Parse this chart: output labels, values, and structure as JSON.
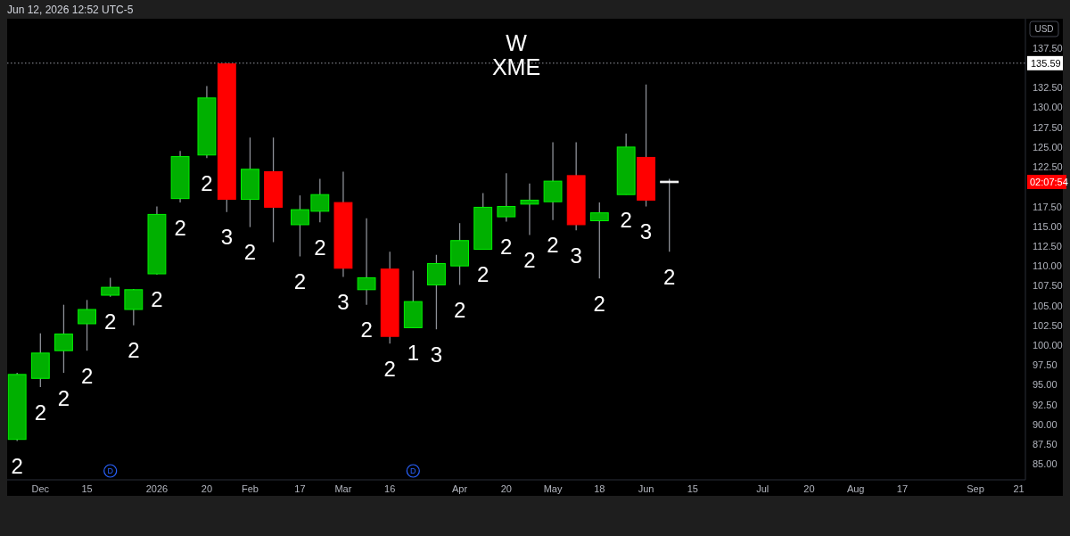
{
  "chart_data": {
    "type": "candlestick",
    "title": "W",
    "subtitle": "XME",
    "ylabel": "USD",
    "x": [
      "2025-11-24",
      "2025-12-01",
      "2025-12-08",
      "2025-12-15",
      "2025-12-22",
      "2025-12-29",
      "2026-01-05",
      "2026-01-12",
      "2026-01-20",
      "2026-01-26",
      "2026-02-02",
      "2026-02-09",
      "2026-02-17",
      "2026-02-23",
      "2026-03-02",
      "2026-03-09",
      "2026-03-16",
      "2026-03-23",
      "2026-03-30",
      "2026-04-06",
      "2026-04-13",
      "2026-04-20",
      "2026-04-27",
      "2026-05-04",
      "2026-05-11",
      "2026-05-18",
      "2026-05-26",
      "2026-06-01",
      "2026-06-08"
    ],
    "ohlc": [
      [
        88.1,
        96.5,
        87.9,
        96.3
      ],
      [
        95.8,
        101.5,
        94.7,
        99.0
      ],
      [
        99.3,
        105.1,
        96.5,
        101.4
      ],
      [
        102.7,
        105.7,
        99.3,
        104.5
      ],
      [
        106.3,
        108.5,
        106.1,
        107.3
      ],
      [
        104.5,
        107.1,
        102.5,
        107.0
      ],
      [
        109.0,
        117.5,
        108.9,
        116.5
      ],
      [
        118.5,
        124.5,
        118.0,
        123.8
      ],
      [
        124.0,
        132.7,
        123.6,
        131.2
      ],
      [
        135.5,
        135.59,
        116.8,
        118.4
      ],
      [
        118.4,
        126.2,
        114.9,
        122.2
      ],
      [
        121.9,
        126.2,
        113.0,
        117.4
      ],
      [
        115.2,
        118.9,
        111.2,
        117.1
      ],
      [
        116.9,
        121.0,
        115.5,
        119.0
      ],
      [
        118.0,
        121.9,
        108.6,
        109.7
      ],
      [
        107.0,
        116.0,
        105.1,
        108.5
      ],
      [
        109.6,
        111.8,
        100.2,
        101.1
      ],
      [
        102.2,
        109.4,
        102.2,
        105.5
      ],
      [
        107.6,
        111.4,
        102.0,
        110.3
      ],
      [
        110.0,
        115.4,
        107.6,
        113.2
      ],
      [
        112.1,
        119.2,
        112.1,
        117.4
      ],
      [
        116.2,
        121.7,
        115.6,
        117.5
      ],
      [
        117.8,
        120.4,
        113.9,
        118.3
      ],
      [
        118.1,
        125.6,
        115.8,
        120.7
      ],
      [
        121.4,
        125.6,
        114.5,
        115.2
      ],
      [
        115.7,
        118.0,
        108.4,
        116.7
      ],
      [
        119.0,
        126.7,
        119.0,
        125.0
      ],
      [
        123.7,
        132.9,
        117.5,
        118.3
      ],
      [
        120.6,
        121.0,
        111.8,
        120.6
      ]
    ],
    "colors": [
      "#00b000",
      "#00b000",
      "#00b000",
      "#00b000",
      "#00b000",
      "#00b000",
      "#00b000",
      "#00b000",
      "#00b000",
      "#ff0000",
      "#00b000",
      "#ff0000",
      "#00b000",
      "#00b000",
      "#ff0000",
      "#00b000",
      "#ff0000",
      "#00b000",
      "#00b000",
      "#00b000",
      "#00b000",
      "#00b000",
      "#00b000",
      "#00b000",
      "#ff0000",
      "#00b000",
      "#00b000",
      "#ff0000",
      "#ffffff"
    ],
    "xlim": [
      "2025-11-21",
      "2026-09-23"
    ],
    "xticks": [
      {
        "value": "2025-12-01",
        "label": "Dec"
      },
      {
        "value": "2025-12-15",
        "label": "15"
      },
      {
        "value": "2026-01-05",
        "label": "2026"
      },
      {
        "value": "2026-01-20",
        "label": "20"
      },
      {
        "value": "2026-02-02",
        "label": "Feb"
      },
      {
        "value": "2026-02-17",
        "label": "17"
      },
      {
        "value": "2026-03-02",
        "label": "Mar"
      },
      {
        "value": "2026-03-16",
        "label": "16"
      },
      {
        "value": "2026-04-06",
        "label": "Apr"
      },
      {
        "value": "2026-04-20",
        "label": "20"
      },
      {
        "value": "2026-05-04",
        "label": "May"
      },
      {
        "value": "2026-05-18",
        "label": "18"
      },
      {
        "value": "2026-06-01",
        "label": "Jun"
      },
      {
        "value": "2026-06-15",
        "label": "15"
      },
      {
        "value": "2026-07-06",
        "label": "Jul"
      },
      {
        "value": "2026-07-20",
        "label": "20"
      },
      {
        "value": "2026-08-03",
        "label": "Aug"
      },
      {
        "value": "2026-08-17",
        "label": "17"
      },
      {
        "value": "2026-09-08",
        "label": "Sep"
      },
      {
        "value": "2026-09-21",
        "label": "21"
      }
    ],
    "ylim": [
      83.0,
      141.2
    ],
    "yticks": [
      {
        "value": 85,
        "label": "85.00"
      },
      {
        "value": 87.5,
        "label": "87.50"
      },
      {
        "value": 90,
        "label": "90.00"
      },
      {
        "value": 92.5,
        "label": "92.50"
      },
      {
        "value": 95,
        "label": "95.00"
      },
      {
        "value": 97.5,
        "label": "97.50"
      },
      {
        "value": 100,
        "label": "100.00"
      },
      {
        "value": 102.5,
        "label": "102.50"
      },
      {
        "value": 105,
        "label": "105.00"
      },
      {
        "value": 107.5,
        "label": "107.50"
      },
      {
        "value": 110,
        "label": "110.00"
      },
      {
        "value": 112.5,
        "label": "112.50"
      },
      {
        "value": 115,
        "label": "115.00"
      },
      {
        "value": 117.5,
        "label": "117.50"
      },
      {
        "value": 122.5,
        "label": "122.50"
      },
      {
        "value": 125,
        "label": "125.00"
      },
      {
        "value": 127.5,
        "label": "127.50"
      },
      {
        "value": 130,
        "label": "130.00"
      },
      {
        "value": 132.5,
        "label": "132.50"
      },
      {
        "value": 137.5,
        "label": "137.50"
      }
    ],
    "ref_lines": [
      {
        "axis": "y",
        "value": 135.59,
        "label": "135.59",
        "line_style": "dotted",
        "color": "#9598a1"
      }
    ],
    "annotations": [
      "Jun 12, 2026 12:52 UTC-5",
      "02:07:54",
      {
        "text": "D",
        "x": "2025-12-22"
      },
      {
        "text": "D",
        "x": "2026-03-23"
      },
      {
        "text": "2",
        "x": "2025-11-24",
        "y": 87.9
      },
      {
        "text": "2",
        "x": "2025-12-01",
        "y": 94.7
      },
      {
        "text": "2",
        "x": "2025-12-08",
        "y": 96.5
      },
      {
        "text": "2",
        "x": "2025-12-15",
        "y": 99.3
      },
      {
        "text": "2",
        "x": "2025-12-22",
        "y": 106.1
      },
      {
        "text": "2",
        "x": "2025-12-29",
        "y": 102.5
      },
      {
        "text": "2",
        "x": "2026-01-05",
        "y": 108.9
      },
      {
        "text": "2",
        "x": "2026-01-12",
        "y": 118.0
      },
      {
        "text": "2",
        "x": "2026-01-20",
        "y": 123.6
      },
      {
        "text": "3",
        "x": "2026-01-26",
        "y": 116.8
      },
      {
        "text": "2",
        "x": "2026-02-02",
        "y": 114.9
      },
      {
        "text": "2",
        "x": "2026-02-17",
        "y": 111.2
      },
      {
        "text": "2",
        "x": "2026-02-23",
        "y": 115.5
      },
      {
        "text": "3",
        "x": "2026-03-02",
        "y": 108.6
      },
      {
        "text": "2",
        "x": "2026-03-09",
        "y": 105.1
      },
      {
        "text": "2",
        "x": "2026-03-16",
        "y": 100.2
      },
      {
        "text": "1",
        "x": "2026-03-23",
        "y": 102.2
      },
      {
        "text": "3",
        "x": "2026-03-30",
        "y": 102.0
      },
      {
        "text": "2",
        "x": "2026-04-06",
        "y": 107.6
      },
      {
        "text": "2",
        "x": "2026-04-13",
        "y": 112.1
      },
      {
        "text": "2",
        "x": "2026-04-20",
        "y": 115.6
      },
      {
        "text": "2",
        "x": "2026-04-27",
        "y": 113.9
      },
      {
        "text": "2",
        "x": "2026-05-04",
        "y": 115.8
      },
      {
        "text": "3",
        "x": "2026-05-11",
        "y": 114.5
      },
      {
        "text": "2",
        "x": "2026-05-18",
        "y": 108.4
      },
      {
        "text": "2",
        "x": "2026-05-26",
        "y": 119.0
      },
      {
        "text": "3",
        "x": "2026-06-01",
        "y": 117.5
      },
      {
        "text": "2",
        "x": "2026-06-08",
        "y": 111.8
      }
    ]
  }
}
